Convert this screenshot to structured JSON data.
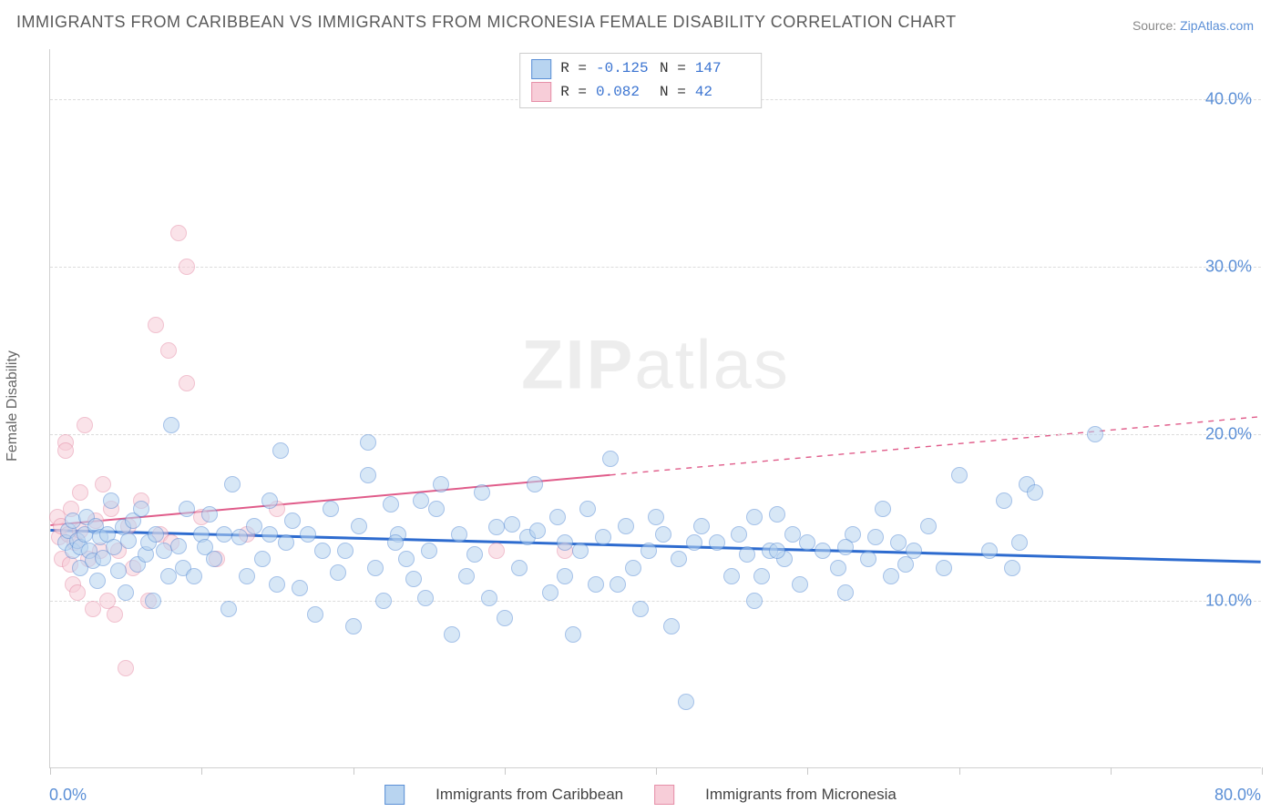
{
  "title": "IMMIGRANTS FROM CARIBBEAN VS IMMIGRANTS FROM MICRONESIA FEMALE DISABILITY CORRELATION CHART",
  "source_prefix": "Source: ",
  "source_link": "ZipAtlas.com",
  "y_axis_label": "Female Disability",
  "watermark_a": "ZIP",
  "watermark_b": "atlas",
  "chart": {
    "type": "scatter",
    "xlim": [
      0,
      80
    ],
    "ylim": [
      0,
      43
    ],
    "x_ticks": [
      0,
      10,
      20,
      30,
      40,
      50,
      60,
      70,
      80
    ],
    "x_tick_labels": {
      "0": "0.0%",
      "80": "80.0%"
    },
    "y_gridlines": [
      10,
      20,
      30,
      40
    ],
    "y_tick_labels": {
      "10": "10.0%",
      "20": "20.0%",
      "30": "30.0%",
      "40": "40.0%"
    },
    "background_color": "#ffffff",
    "grid_color": "#dcdcdc",
    "axis_color": "#d0d0d0",
    "tick_label_color": "#5b8fd6",
    "marker_radius": 9,
    "marker_opacity": 0.55,
    "series": [
      {
        "key": "caribbean",
        "label": "Immigrants from Caribbean",
        "R": "-0.125",
        "N": "147",
        "fill": "#b8d4f0",
        "stroke": "#5b8fd6",
        "line_color": "#2d6bcf",
        "line_width": 3,
        "regression": {
          "x1": 0,
          "y1": 14.2,
          "x2": 80,
          "y2": 12.3,
          "solid_until_x": 80
        },
        "points": [
          [
            1.0,
            13.5
          ],
          [
            1.2,
            14.2
          ],
          [
            1.5,
            13.0
          ],
          [
            1.5,
            14.8
          ],
          [
            1.8,
            13.6
          ],
          [
            2.0,
            13.2
          ],
          [
            2.0,
            12.0
          ],
          [
            2.3,
            14.0
          ],
          [
            2.4,
            15.0
          ],
          [
            2.6,
            13.0
          ],
          [
            2.8,
            12.4
          ],
          [
            3.0,
            14.5
          ],
          [
            3.1,
            11.2
          ],
          [
            3.3,
            13.8
          ],
          [
            3.5,
            12.6
          ],
          [
            3.8,
            14.0
          ],
          [
            4.0,
            16.0
          ],
          [
            4.2,
            13.2
          ],
          [
            4.5,
            11.8
          ],
          [
            4.8,
            14.4
          ],
          [
            5.0,
            10.5
          ],
          [
            5.2,
            13.6
          ],
          [
            5.5,
            14.8
          ],
          [
            5.8,
            12.2
          ],
          [
            6.0,
            15.5
          ],
          [
            6.3,
            12.8
          ],
          [
            6.5,
            13.5
          ],
          [
            6.8,
            10.0
          ],
          [
            7.0,
            14.0
          ],
          [
            7.5,
            13.0
          ],
          [
            7.8,
            11.5
          ],
          [
            8.0,
            20.5
          ],
          [
            8.5,
            13.3
          ],
          [
            8.8,
            12.0
          ],
          [
            9.0,
            15.5
          ],
          [
            9.5,
            11.5
          ],
          [
            10.0,
            14.0
          ],
          [
            10.2,
            13.2
          ],
          [
            10.5,
            15.2
          ],
          [
            10.8,
            12.5
          ],
          [
            11.5,
            14.0
          ],
          [
            11.8,
            9.5
          ],
          [
            12.0,
            17.0
          ],
          [
            12.5,
            13.8
          ],
          [
            13.0,
            11.5
          ],
          [
            13.5,
            14.5
          ],
          [
            14.0,
            12.5
          ],
          [
            14.5,
            16.0
          ],
          [
            15.0,
            11.0
          ],
          [
            15.2,
            19.0
          ],
          [
            15.6,
            13.5
          ],
          [
            16.0,
            14.8
          ],
          [
            16.5,
            10.8
          ],
          [
            17.0,
            14.0
          ],
          [
            17.5,
            9.2
          ],
          [
            18.0,
            13.0
          ],
          [
            18.5,
            15.5
          ],
          [
            19.0,
            11.7
          ],
          [
            19.5,
            13.0
          ],
          [
            20.0,
            8.5
          ],
          [
            20.4,
            14.5
          ],
          [
            21.0,
            17.5
          ],
          [
            21.0,
            19.5
          ],
          [
            21.5,
            12.0
          ],
          [
            22.0,
            10.0
          ],
          [
            22.5,
            15.8
          ],
          [
            23.0,
            14.0
          ],
          [
            23.5,
            12.5
          ],
          [
            24.0,
            11.3
          ],
          [
            24.5,
            16.0
          ],
          [
            24.8,
            10.2
          ],
          [
            25.0,
            13.0
          ],
          [
            25.5,
            15.5
          ],
          [
            25.8,
            17.0
          ],
          [
            26.5,
            8.0
          ],
          [
            27.0,
            14.0
          ],
          [
            27.5,
            11.5
          ],
          [
            28.0,
            12.8
          ],
          [
            28.5,
            16.5
          ],
          [
            29.0,
            10.2
          ],
          [
            29.5,
            14.4
          ],
          [
            30.0,
            9.0
          ],
          [
            30.5,
            14.6
          ],
          [
            31.0,
            12.0
          ],
          [
            31.5,
            13.8
          ],
          [
            32.0,
            17.0
          ],
          [
            32.2,
            14.2
          ],
          [
            33.0,
            10.5
          ],
          [
            33.5,
            15.0
          ],
          [
            34.0,
            13.5
          ],
          [
            34.5,
            8.0
          ],
          [
            35.0,
            13.0
          ],
          [
            35.5,
            15.5
          ],
          [
            36.0,
            11.0
          ],
          [
            36.5,
            13.8
          ],
          [
            37.0,
            18.5
          ],
          [
            37.5,
            11.0
          ],
          [
            38.0,
            14.5
          ],
          [
            38.5,
            12.0
          ],
          [
            39.0,
            9.5
          ],
          [
            39.5,
            13.0
          ],
          [
            40.0,
            15.0
          ],
          [
            40.5,
            14.0
          ],
          [
            41.0,
            8.5
          ],
          [
            41.5,
            12.5
          ],
          [
            42.0,
            4.0
          ],
          [
            42.5,
            13.5
          ],
          [
            43.0,
            14.5
          ],
          [
            44.0,
            13.5
          ],
          [
            45.0,
            11.5
          ],
          [
            45.5,
            14.0
          ],
          [
            46.0,
            12.8
          ],
          [
            46.5,
            15.0
          ],
          [
            47.0,
            11.5
          ],
          [
            47.5,
            13.0
          ],
          [
            48.0,
            15.2
          ],
          [
            48.5,
            12.5
          ],
          [
            49.0,
            14.0
          ],
          [
            49.5,
            11.0
          ],
          [
            50.0,
            13.5
          ],
          [
            51.0,
            13.0
          ],
          [
            52.0,
            12.0
          ],
          [
            52.5,
            10.5
          ],
          [
            53.0,
            14.0
          ],
          [
            54.0,
            12.5
          ],
          [
            55.0,
            15.5
          ],
          [
            55.5,
            11.5
          ],
          [
            56.0,
            13.5
          ],
          [
            57.0,
            13.0
          ],
          [
            58.0,
            14.5
          ],
          [
            59.0,
            12.0
          ],
          [
            60.0,
            17.5
          ],
          [
            62.0,
            13.0
          ],
          [
            63.0,
            16.0
          ],
          [
            63.5,
            12.0
          ],
          [
            64.0,
            13.5
          ],
          [
            64.5,
            17.0
          ],
          [
            65.0,
            16.5
          ],
          [
            69.0,
            20.0
          ],
          [
            52.5,
            13.2
          ],
          [
            54.5,
            13.8
          ],
          [
            56.5,
            12.2
          ],
          [
            48.0,
            13.0
          ],
          [
            46.5,
            10.0
          ],
          [
            22.8,
            13.5
          ],
          [
            14.5,
            14.0
          ],
          [
            34.0,
            11.5
          ]
        ]
      },
      {
        "key": "micronesia",
        "label": "Immigrants from Micronesia",
        "R": "0.082",
        "N": "42",
        "fill": "#f7cdd8",
        "stroke": "#e68fa8",
        "line_color": "#e05c8a",
        "line_width": 2,
        "regression": {
          "x1": 0,
          "y1": 14.5,
          "x2": 80,
          "y2": 21.0,
          "solid_until_x": 37
        },
        "points": [
          [
            0.5,
            15.0
          ],
          [
            0.6,
            13.8
          ],
          [
            0.7,
            14.5
          ],
          [
            0.8,
            12.5
          ],
          [
            1.0,
            19.5
          ],
          [
            1.0,
            19.0
          ],
          [
            1.2,
            14.0
          ],
          [
            1.3,
            12.2
          ],
          [
            1.4,
            15.5
          ],
          [
            1.5,
            11.0
          ],
          [
            1.6,
            13.5
          ],
          [
            1.8,
            10.5
          ],
          [
            2.0,
            16.5
          ],
          [
            2.0,
            14.2
          ],
          [
            2.3,
            20.5
          ],
          [
            2.5,
            12.5
          ],
          [
            2.8,
            9.5
          ],
          [
            3.0,
            14.8
          ],
          [
            3.3,
            13.0
          ],
          [
            3.5,
            17.0
          ],
          [
            3.8,
            10.0
          ],
          [
            4.0,
            15.5
          ],
          [
            4.3,
            9.2
          ],
          [
            4.5,
            13.0
          ],
          [
            5.0,
            6.0
          ],
          [
            5.2,
            14.5
          ],
          [
            5.5,
            12.0
          ],
          [
            6.0,
            16.0
          ],
          [
            6.5,
            10.0
          ],
          [
            7.0,
            26.5
          ],
          [
            7.3,
            14.0
          ],
          [
            7.8,
            25.0
          ],
          [
            8.0,
            13.5
          ],
          [
            8.5,
            32.0
          ],
          [
            9.0,
            23.0
          ],
          [
            9.0,
            30.0
          ],
          [
            10.0,
            15.0
          ],
          [
            11.0,
            12.5
          ],
          [
            13.0,
            14.0
          ],
          [
            15.0,
            15.5
          ],
          [
            29.5,
            13.0
          ],
          [
            34.0,
            13.0
          ]
        ]
      }
    ]
  },
  "stat_labels": {
    "R": "R =",
    "N": "N ="
  }
}
